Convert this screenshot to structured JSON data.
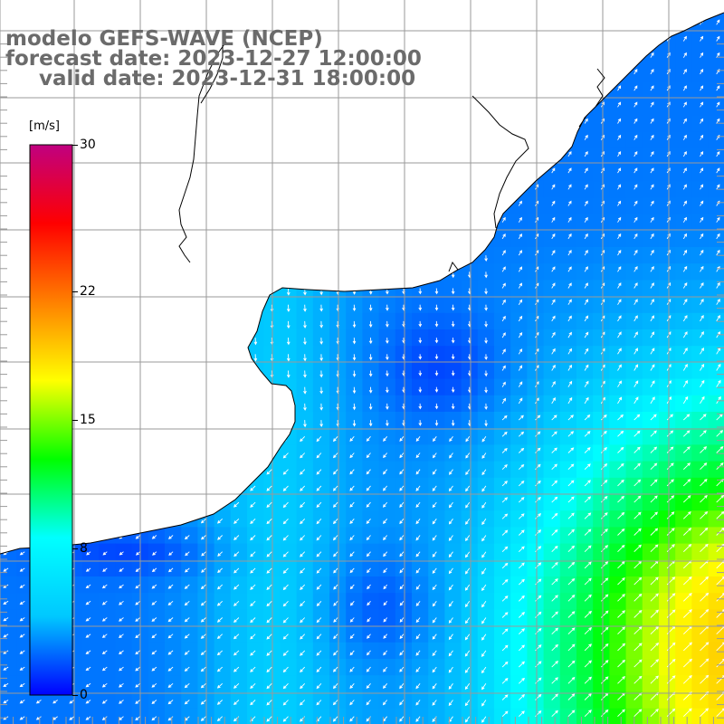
{
  "title": {
    "line1": "modelo GEFS-WAVE (NCEP)",
    "line2": "forecast date: 2023-12-27 12:00:00",
    "line3": "valid date: 2023-12-31 18:00:00"
  },
  "colorbar": {
    "unit": "[m/s]",
    "ticks": [
      "30",
      "22",
      "15",
      "8",
      "0"
    ],
    "tick_values": [
      30,
      22,
      15,
      8,
      0
    ],
    "range": [
      0,
      30
    ],
    "stops": [
      "#0000ff",
      "#00c8ff",
      "#00ffff",
      "#00ff00",
      "#ffff00",
      "#ff8000",
      "#ff0000",
      "#c00080"
    ]
  },
  "map": {
    "land_color": "#ffffff",
    "grid_color": "#9a9a9a",
    "coast_color": "#000000",
    "arrow_color": "#ffffff",
    "field": "wind speed with direction arrows"
  }
}
